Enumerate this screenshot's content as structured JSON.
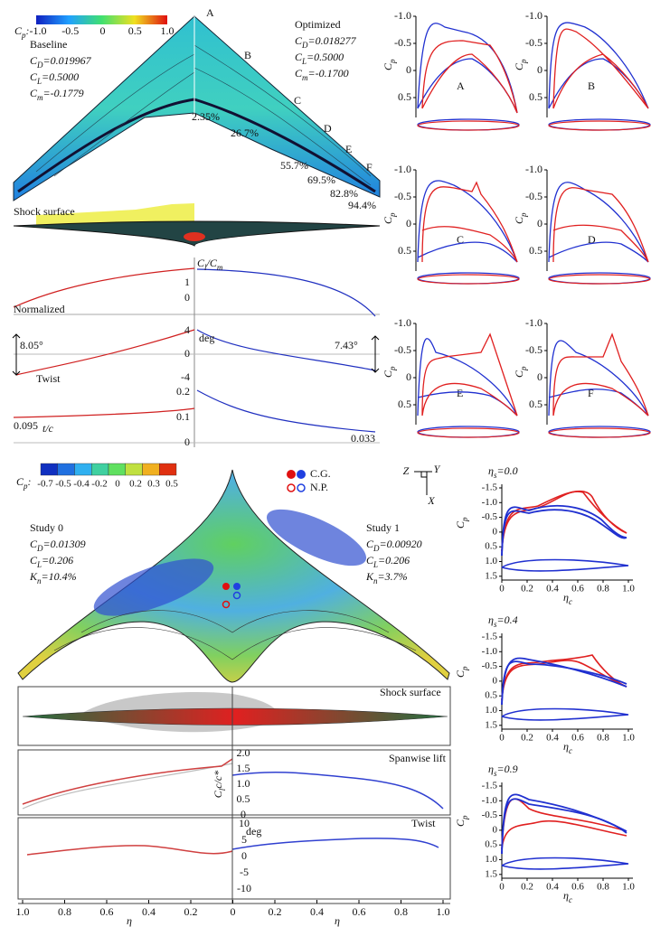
{
  "top": {
    "colorbar": {
      "symbol": [
        "C",
        "p",
        ":"
      ],
      "ticks": [
        "-1.0",
        "-0.5",
        "0",
        "0.5",
        "1.0"
      ]
    },
    "baseline": {
      "title": "Baseline",
      "coefficients": [
        [
          "C",
          "D",
          "=0.019967"
        ],
        [
          "C",
          "L",
          "=0.5000"
        ],
        [
          "C",
          "m",
          "=-0.1779"
        ]
      ]
    },
    "optimized": {
      "title": "Optimized",
      "coefficients": [
        [
          "C",
          "D",
          "=0.018277"
        ],
        [
          "C",
          "L",
          "=0.5000"
        ],
        [
          "C",
          "m",
          "=-0.1700"
        ]
      ]
    },
    "sections": [
      "A",
      "B",
      "C",
      "D",
      "E",
      "F"
    ],
    "section_positions": [
      "2.35%",
      "26.7%",
      "55.7%",
      "69.5%",
      "82.8%",
      "94.4%"
    ],
    "shock_label": "Shock surface",
    "lift_plot": {
      "label": [
        "C",
        "l",
        "/C",
        "m"
      ],
      "ticks": [
        "1",
        "0"
      ],
      "note": "Normalized"
    },
    "twist_plot": {
      "ticks": [
        "4",
        "0",
        "-4"
      ],
      "unit": "deg",
      "left": "8.05°",
      "right": "7.43°",
      "label": "Twist"
    },
    "thickness_plot": {
      "ticks": [
        "0.2",
        "0.1",
        "0"
      ],
      "left": "0.095",
      "label": "t/c",
      "right": "0.033"
    },
    "cp_panels": {
      "y_label": [
        "C",
        "p"
      ],
      "yticks": [
        "-1.0",
        "-0.5",
        "0",
        "0.5"
      ]
    }
  },
  "bottom": {
    "colorbar": {
      "symbol": [
        "C",
        "p",
        ":"
      ],
      "ticks": [
        "-0.7",
        "-0.5",
        "-0.4",
        "-0.2",
        "0",
        "0.2",
        "0.3",
        "0.5"
      ]
    },
    "legend": [
      "C.G.",
      "N.P."
    ],
    "axes": [
      "Z",
      "Y",
      "X"
    ],
    "study0": {
      "title": "Study 0",
      "coefficients": [
        [
          "C",
          "D",
          "=0.01309"
        ],
        [
          "C",
          "L",
          "=0.206"
        ],
        [
          "K",
          "n",
          "=10.4%"
        ]
      ]
    },
    "study1": {
      "title": "Study 1",
      "coefficients": [
        [
          "C",
          "D",
          "=0.00920"
        ],
        [
          "C",
          "L",
          "=0.206"
        ],
        [
          "K",
          "n",
          "=3.7%"
        ]
      ]
    },
    "shock_label": "Shock surface",
    "lift_plot": {
      "label": "Spanwise lift",
      "y_label": [
        "C",
        "l",
        "c/c*"
      ],
      "yticks": [
        "2.0",
        "1.5",
        "1.0",
        "0.5",
        "0"
      ]
    },
    "twist_plot": {
      "label": "Twist",
      "unit": "deg",
      "yticks": [
        "10",
        "5",
        "0",
        "-5",
        "-10"
      ]
    },
    "xticks": [
      "1.0",
      "0.8",
      "0.6",
      "0.4",
      "0.2",
      "0",
      "0.2",
      "0.4",
      "0.6",
      "0.8",
      "1.0"
    ],
    "x_label": "η",
    "sections": [
      [
        "η",
        "s",
        "=0.0"
      ],
      [
        "η",
        "s",
        "=0.4"
      ],
      [
        "η",
        "s",
        "=0.9"
      ]
    ],
    "section_yticks": [
      "-1.5",
      "-1.0",
      "-0.5",
      "0",
      "0.5",
      "1.0",
      "1.5"
    ],
    "section_xticks": [
      "0",
      "0.2",
      "0.4",
      "0.6",
      "0.8",
      "1.0"
    ],
    "section_y_label": [
      "C",
      "p"
    ],
    "section_x_label": [
      "η",
      "c"
    ]
  }
}
